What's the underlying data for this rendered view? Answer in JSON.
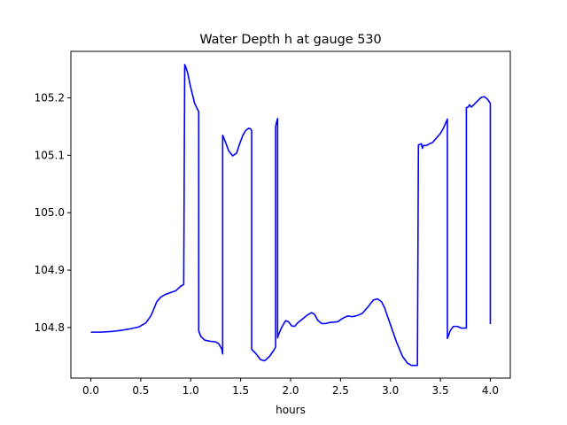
{
  "chart_data": {
    "type": "line",
    "title": "Water Depth h at gauge 530",
    "xlabel": "hours",
    "ylabel": "",
    "xlim": [
      -0.2,
      4.2
    ],
    "ylim": [
      104.712,
      105.281
    ],
    "xticks": [
      0.0,
      0.5,
      1.0,
      1.5,
      2.0,
      2.5,
      3.0,
      3.5,
      4.0
    ],
    "xtick_labels": [
      "0.0",
      "0.5",
      "1.0",
      "1.5",
      "2.0",
      "2.5",
      "3.0",
      "3.5",
      "4.0"
    ],
    "yticks": [
      104.8,
      104.9,
      105.0,
      105.1,
      105.2
    ],
    "ytick_labels": [
      "104.8",
      "104.9",
      "105.0",
      "105.1",
      "105.2"
    ],
    "grid": false,
    "series": [
      {
        "color": "#0000ff",
        "x": [
          0.0,
          0.1,
          0.2,
          0.3,
          0.4,
          0.48,
          0.55,
          0.6,
          0.63,
          0.66,
          0.7,
          0.75,
          0.8,
          0.85,
          0.9,
          0.93,
          0.94,
          0.95,
          0.97,
          1.0,
          1.04,
          1.08,
          1.08,
          1.1,
          1.14,
          1.2,
          1.25,
          1.28,
          1.31,
          1.32,
          1.32,
          1.35,
          1.38,
          1.42,
          1.46,
          1.49,
          1.52,
          1.55,
          1.58,
          1.6,
          1.61,
          1.61,
          1.65,
          1.7,
          1.74,
          1.79,
          1.83,
          1.85,
          1.85,
          1.86,
          1.87,
          1.87,
          1.88,
          1.91,
          1.95,
          1.98,
          2.01,
          2.04,
          2.07,
          2.12,
          2.17,
          2.21,
          2.24,
          2.27,
          2.31,
          2.35,
          2.4,
          2.47,
          2.52,
          2.57,
          2.62,
          2.67,
          2.72,
          2.77,
          2.83,
          2.87,
          2.91,
          2.94,
          2.97,
          3.01,
          3.06,
          3.12,
          3.17,
          3.21,
          3.25,
          3.27,
          3.28,
          3.28,
          3.31,
          3.32,
          3.33,
          3.36,
          3.39,
          3.42,
          3.46,
          3.5,
          3.53,
          3.57,
          3.57,
          3.6,
          3.63,
          3.67,
          3.71,
          3.74,
          3.76,
          3.76,
          3.78,
          3.79,
          3.81,
          3.84,
          3.88,
          3.91,
          3.94,
          3.97,
          3.99,
          4.0,
          4.0
        ],
        "values": [
          104.792,
          104.792,
          104.793,
          104.795,
          104.798,
          104.801,
          104.808,
          104.82,
          104.832,
          104.845,
          104.853,
          104.858,
          104.861,
          104.864,
          104.872,
          104.875,
          105.258,
          105.254,
          105.243,
          105.218,
          105.19,
          105.176,
          104.794,
          104.785,
          104.778,
          104.776,
          104.775,
          104.772,
          104.763,
          104.754,
          105.135,
          105.122,
          105.108,
          105.099,
          105.104,
          105.12,
          105.134,
          105.143,
          105.147,
          105.146,
          105.143,
          104.762,
          104.755,
          104.744,
          104.742,
          104.75,
          104.76,
          104.766,
          105.15,
          105.158,
          105.164,
          104.782,
          104.788,
          104.8,
          104.812,
          104.81,
          104.803,
          104.802,
          104.808,
          104.815,
          104.822,
          104.826,
          104.823,
          104.813,
          104.807,
          104.807,
          104.809,
          104.81,
          104.816,
          104.82,
          104.819,
          104.821,
          104.825,
          104.835,
          104.848,
          104.85,
          104.845,
          104.835,
          104.82,
          104.8,
          104.775,
          104.75,
          104.738,
          104.734,
          104.734,
          104.734,
          105.118,
          105.118,
          105.12,
          105.112,
          105.117,
          105.117,
          105.12,
          105.122,
          105.13,
          105.138,
          105.147,
          105.163,
          104.781,
          104.795,
          104.802,
          104.802,
          104.799,
          104.799,
          104.799,
          105.183,
          105.184,
          105.188,
          105.184,
          105.189,
          105.196,
          105.201,
          105.202,
          105.198,
          105.193,
          105.19,
          104.806
        ]
      }
    ]
  }
}
